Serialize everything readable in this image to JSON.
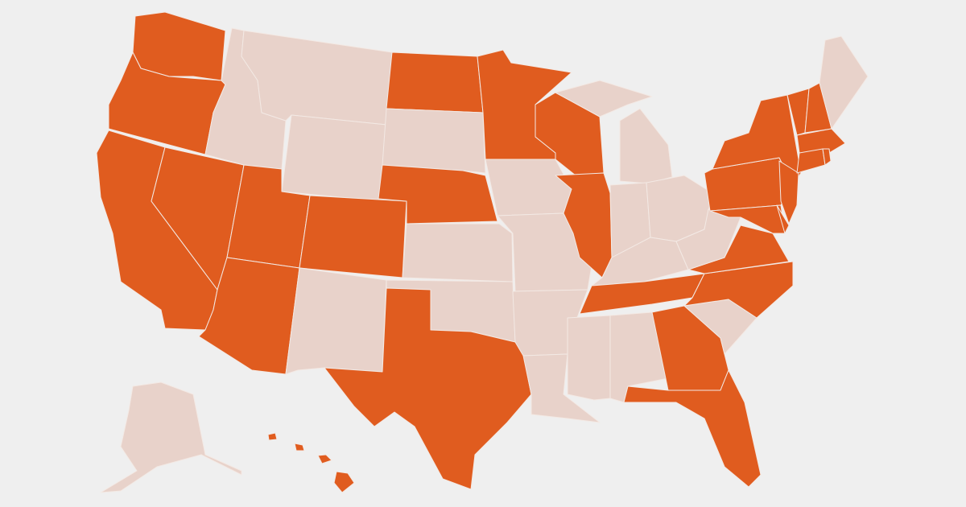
{
  "map": {
    "colors": {
      "background": "#efefef",
      "highlighted": "#e05c1f",
      "not_highlighted": "#e8d2ca",
      "border": "#f3e9e4"
    },
    "states": [
      {
        "id": "WA",
        "highlighted": true
      },
      {
        "id": "OR",
        "highlighted": true
      },
      {
        "id": "CA",
        "highlighted": true
      },
      {
        "id": "NV",
        "highlighted": true
      },
      {
        "id": "ID",
        "highlighted": false
      },
      {
        "id": "MT",
        "highlighted": false
      },
      {
        "id": "WY",
        "highlighted": false
      },
      {
        "id": "UT",
        "highlighted": true
      },
      {
        "id": "CO",
        "highlighted": true
      },
      {
        "id": "AZ",
        "highlighted": true
      },
      {
        "id": "NM",
        "highlighted": false
      },
      {
        "id": "ND",
        "highlighted": true
      },
      {
        "id": "SD",
        "highlighted": false
      },
      {
        "id": "NE",
        "highlighted": true
      },
      {
        "id": "KS",
        "highlighted": false
      },
      {
        "id": "OK",
        "highlighted": false
      },
      {
        "id": "TX",
        "highlighted": true
      },
      {
        "id": "MN",
        "highlighted": true
      },
      {
        "id": "IA",
        "highlighted": false
      },
      {
        "id": "MO",
        "highlighted": false
      },
      {
        "id": "AR",
        "highlighted": false
      },
      {
        "id": "LA",
        "highlighted": false
      },
      {
        "id": "WI",
        "highlighted": true
      },
      {
        "id": "IL",
        "highlighted": true
      },
      {
        "id": "MI",
        "highlighted": false
      },
      {
        "id": "IN",
        "highlighted": false
      },
      {
        "id": "OH",
        "highlighted": false
      },
      {
        "id": "KY",
        "highlighted": false
      },
      {
        "id": "TN",
        "highlighted": true
      },
      {
        "id": "MS",
        "highlighted": false
      },
      {
        "id": "AL",
        "highlighted": false
      },
      {
        "id": "GA",
        "highlighted": true
      },
      {
        "id": "FL",
        "highlighted": true
      },
      {
        "id": "SC",
        "highlighted": false
      },
      {
        "id": "NC",
        "highlighted": true
      },
      {
        "id": "VA",
        "highlighted": true
      },
      {
        "id": "WV",
        "highlighted": false
      },
      {
        "id": "PA",
        "highlighted": true
      },
      {
        "id": "NY",
        "highlighted": true
      },
      {
        "id": "MD",
        "highlighted": true
      },
      {
        "id": "DE",
        "highlighted": true
      },
      {
        "id": "NJ",
        "highlighted": true
      },
      {
        "id": "VT",
        "highlighted": true
      },
      {
        "id": "NH",
        "highlighted": true
      },
      {
        "id": "ME",
        "highlighted": false
      },
      {
        "id": "MA",
        "highlighted": true
      },
      {
        "id": "CT",
        "highlighted": true
      },
      {
        "id": "RI",
        "highlighted": true
      },
      {
        "id": "AK",
        "highlighted": false
      },
      {
        "id": "HI",
        "highlighted": true
      }
    ]
  }
}
